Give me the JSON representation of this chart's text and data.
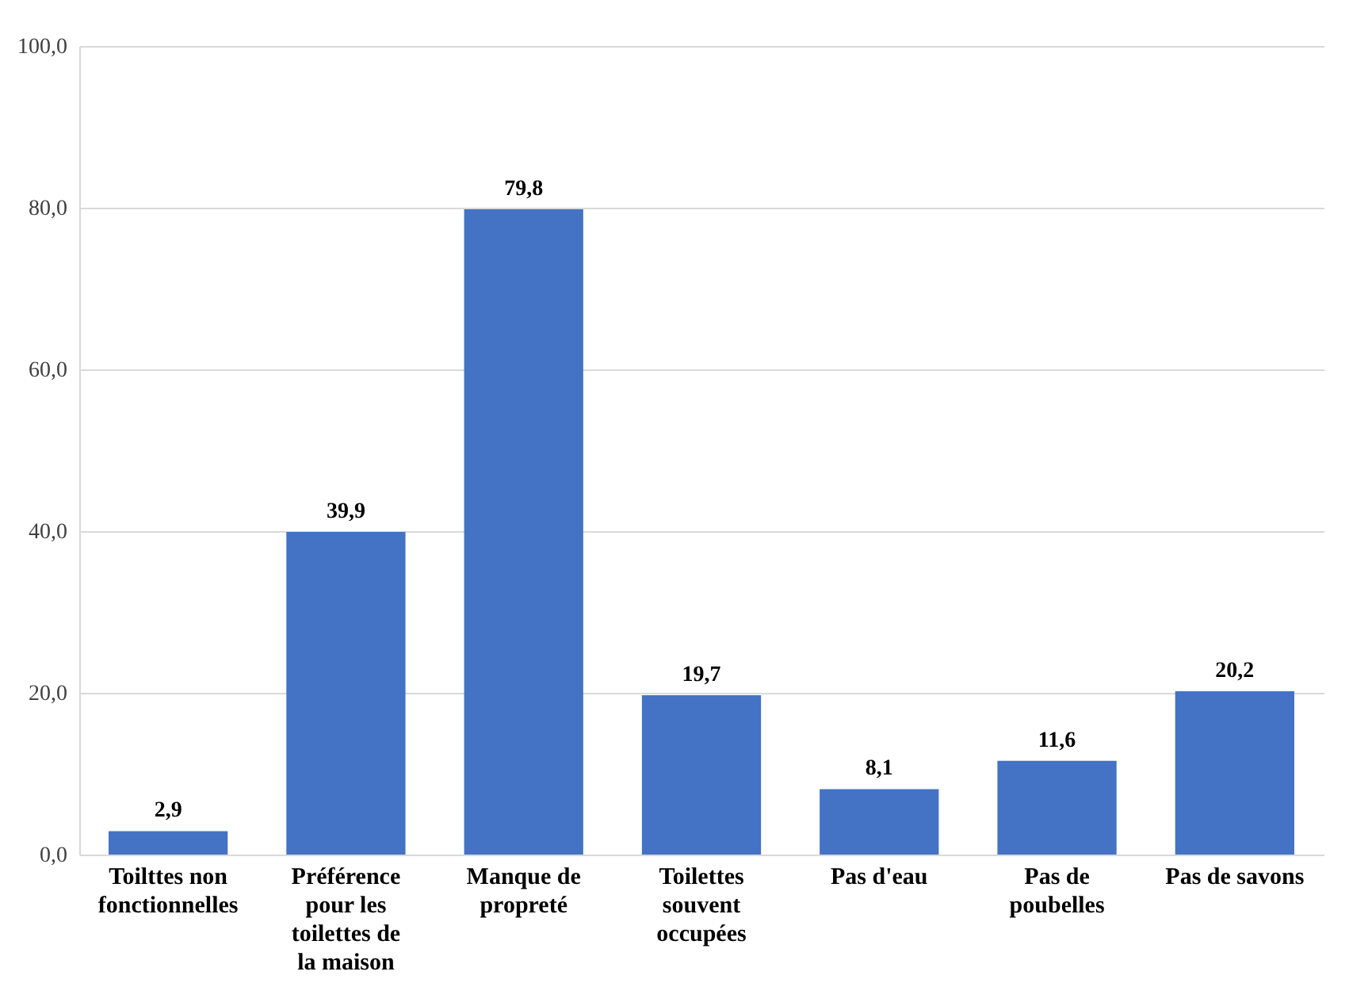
{
  "chart_data": {
    "type": "bar",
    "categories": [
      "Toilttes non fonctionnelles",
      "Préférence pour les toilettes de la maison",
      "Manque de propreté",
      "Toilettes souvent occupées",
      "Pas d'eau",
      "Pas de poubelles",
      "Pas de savons"
    ],
    "values": [
      2.9,
      39.9,
      79.8,
      19.7,
      8.1,
      11.6,
      20.2
    ],
    "value_labels": [
      "2,9",
      "39,9",
      "79,8",
      "19,7",
      "8,1",
      "11,6",
      "20,2"
    ],
    "color": "#4472c4",
    "ylim": [
      0,
      100
    ],
    "yticks": [
      {
        "value": 0,
        "label": "0,0"
      },
      {
        "value": 20,
        "label": "20,0"
      },
      {
        "value": 40,
        "label": "40,0"
      },
      {
        "value": 60,
        "label": "60,0"
      },
      {
        "value": 80,
        "label": "80,0"
      },
      {
        "value": 100,
        "label": "100,0"
      }
    ],
    "grid": "y"
  }
}
